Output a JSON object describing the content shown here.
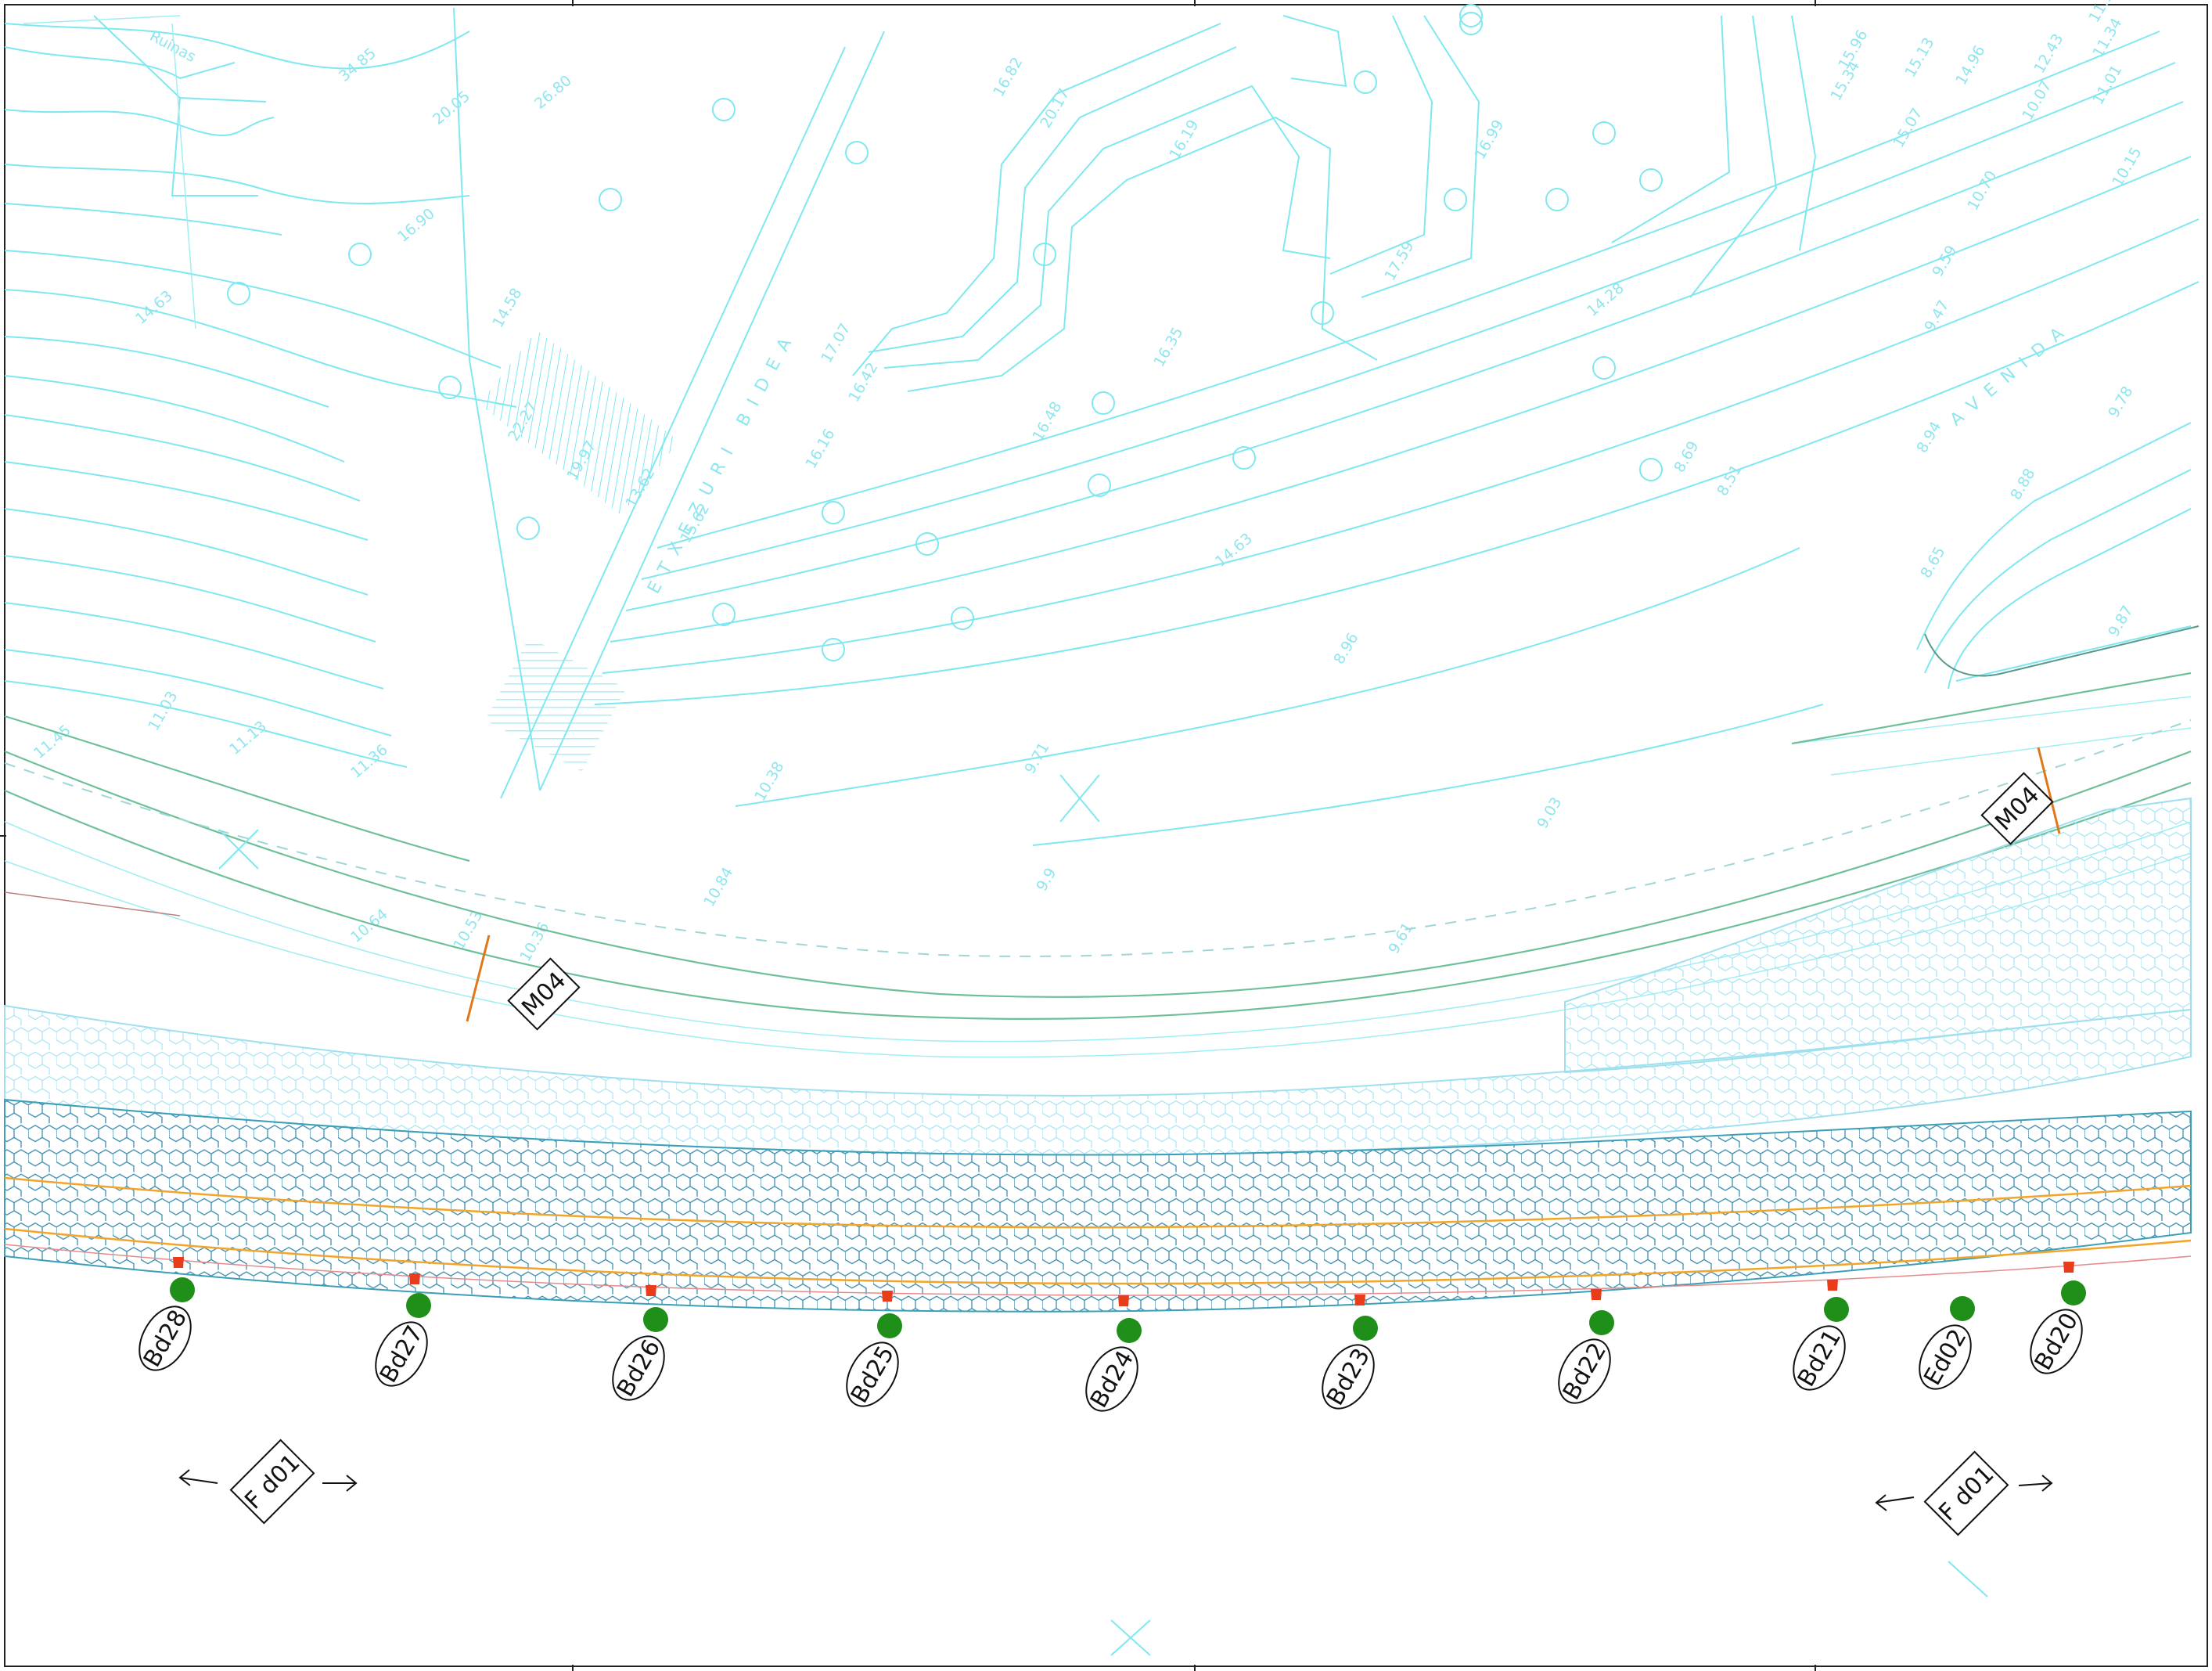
{
  "drawing": {
    "street_names": [
      "ETXEZURI BIDEA",
      "AVENIDA"
    ],
    "place_names": [
      "Ruinas"
    ],
    "elevations": [
      "34.85",
      "26.80",
      "20.05",
      "16.90",
      "14.63",
      "14.58",
      "22.27",
      "19.97",
      "13.62",
      "15.62",
      "17.07",
      "16.42",
      "16.16",
      "16.82",
      "20.17",
      "16.19",
      "16.48",
      "16.35",
      "16.99",
      "17.59",
      "14.28",
      "14.63",
      "10.38",
      "9.71",
      "8.69",
      "8.51",
      "9.59",
      "9.47",
      "8.94",
      "9.78",
      "8.65",
      "9.87",
      "9.03",
      "9.9",
      "9.61",
      "10.84",
      "11.03",
      "11.13",
      "10.53",
      "10.36",
      "11.36",
      "11.45",
      "10.64",
      "10.70",
      "11.01",
      "15.96",
      "15.07",
      "10.07",
      "15.13",
      "14.96",
      "15.34",
      "12.43",
      "11.34",
      "11.15",
      "10.15",
      "8.96",
      "8.88"
    ],
    "markers": {
      "stations": [
        "Bd28",
        "Bd27",
        "Bd26",
        "Bd25",
        "Bd24",
        "Bd23",
        "Bd22",
        "Bd21",
        "Ed02",
        "Bd20"
      ],
      "sections": [
        "M04",
        "M04"
      ],
      "facades": [
        "F d01",
        "F d01"
      ]
    },
    "colors": {
      "contour": "#7ee8f0",
      "road_edge": "#6fc09a",
      "paving_light": "#9fdfee",
      "paving_dark": "#3b8fb0",
      "curb_orange": "#f2a52a",
      "station_green": "#1f8f1a",
      "drain_red": "#e83c1a",
      "section_line": "#e07818"
    }
  }
}
